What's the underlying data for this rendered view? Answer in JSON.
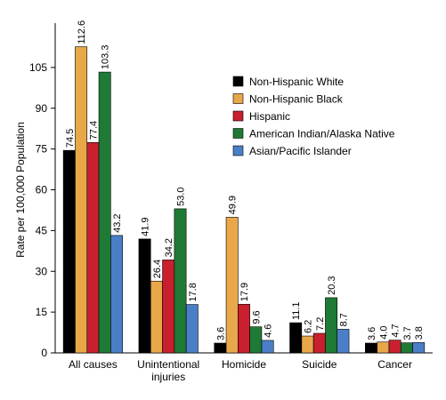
{
  "chart_data": {
    "type": "bar",
    "categories": [
      "All causes",
      "Unintentional\ninjuries",
      "Homicide",
      "Suicide",
      "Cancer"
    ],
    "series": [
      {
        "name": "Non-Hispanic White",
        "color": "#000000",
        "values": [
          74.5,
          41.9,
          3.6,
          11.1,
          3.6
        ]
      },
      {
        "name": "Non-Hispanic Black",
        "color": "#E8A84A",
        "values": [
          112.6,
          26.4,
          49.9,
          6.2,
          4.0
        ]
      },
      {
        "name": "Hispanic",
        "color": "#C8202E",
        "values": [
          77.4,
          34.2,
          17.9,
          7.2,
          4.7
        ]
      },
      {
        "name": "American Indian/Alaska Native",
        "color": "#1E7A34",
        "values": [
          103.3,
          53.0,
          9.6,
          20.3,
          3.7
        ]
      },
      {
        "name": "Asian/Pacific Islander",
        "color": "#4A7FC8",
        "values": [
          43.2,
          17.8,
          4.6,
          8.7,
          3.8
        ]
      }
    ],
    "title": "",
    "xlabel": "",
    "ylabel": "Rate per 100,000 Population",
    "ylim": [
      0,
      120
    ],
    "yticks": [
      0,
      15,
      30,
      45,
      60,
      75,
      90,
      105
    ],
    "grid": false,
    "legend_position": "top-right"
  }
}
